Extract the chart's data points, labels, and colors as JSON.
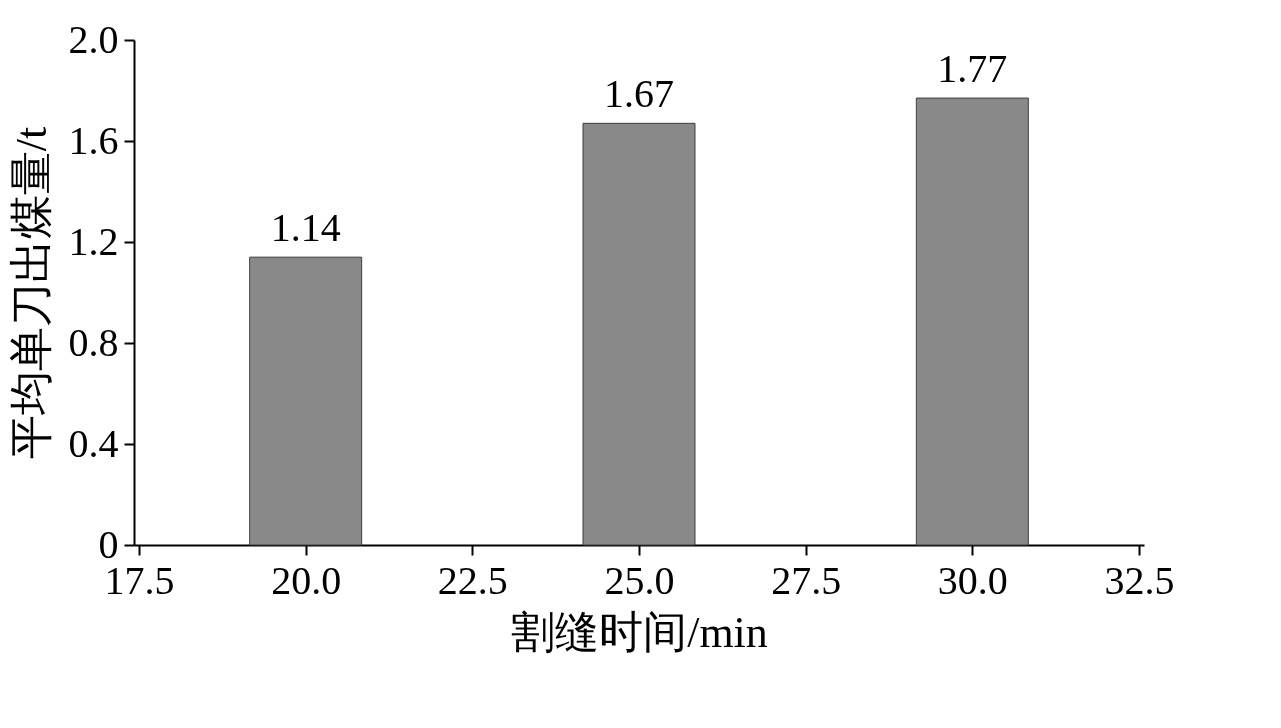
{
  "chart_data": {
    "type": "bar",
    "xlabel": "割缝时间/min",
    "ylabel": "平均单刀出煤量/t",
    "x": [
      20,
      25,
      30
    ],
    "values": [
      1.14,
      1.67,
      1.77
    ],
    "color": "#898989",
    "xlim": [
      17.5,
      32.5
    ],
    "xticks": [
      17.5,
      {
        "value": 20,
        "label": "20.0"
      },
      22.5,
      {
        "value": 25,
        "label": "25.0"
      },
      27.5,
      {
        "value": 30,
        "label": "30.0"
      },
      32.5
    ],
    "ylim": [
      0,
      2.0
    ],
    "yticks": [
      0,
      0.4,
      0.8,
      1.2,
      1.6,
      {
        "value": 2,
        "label": "2.0"
      }
    ],
    "data_labels": true,
    "grid": false
  }
}
